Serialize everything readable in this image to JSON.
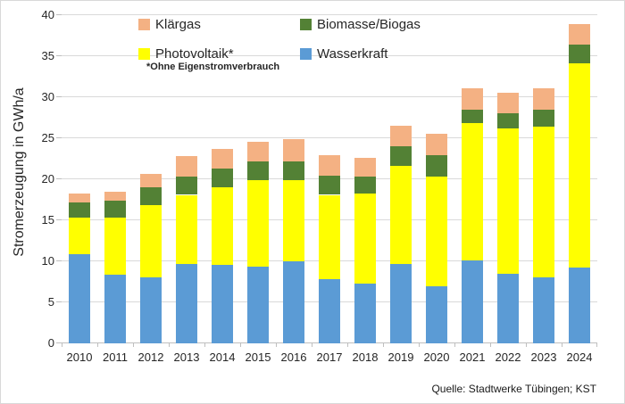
{
  "chart_data": {
    "type": "bar",
    "stacked": true,
    "grid": true,
    "legend_position": "top",
    "y_axis_title": "Stromerzeugung in GWh/a",
    "ylim": [
      0,
      40
    ],
    "y_ticks": [
      0,
      5,
      10,
      15,
      20,
      25,
      30,
      35,
      40
    ],
    "categories": [
      "2010",
      "2011",
      "2012",
      "2013",
      "2014",
      "2015",
      "2016",
      "2017",
      "2018",
      "2019",
      "2020",
      "2021",
      "2022",
      "2023",
      "2024"
    ],
    "series": [
      {
        "name": "Wasserkraft",
        "color": "#5B9BD5",
        "values": [
          10.9,
          8.4,
          8.0,
          9.7,
          9.6,
          9.3,
          10.0,
          7.8,
          7.3,
          9.7,
          7.0,
          10.1,
          8.5,
          8.0,
          9.2
        ]
      },
      {
        "name": "Photovoltaik*",
        "color": "#FFFF00",
        "values": [
          4.4,
          6.9,
          8.9,
          8.4,
          9.4,
          10.6,
          9.9,
          10.3,
          11.0,
          11.9,
          13.3,
          16.7,
          17.7,
          18.4,
          24.9
        ]
      },
      {
        "name": "Biomasse/Biogas",
        "color": "#538135",
        "values": [
          1.9,
          2.1,
          2.1,
          2.2,
          2.3,
          2.3,
          2.3,
          2.3,
          2.0,
          2.4,
          2.6,
          1.7,
          1.8,
          2.1,
          2.3
        ]
      },
      {
        "name": "Klärgas",
        "color": "#F4B183",
        "values": [
          1.1,
          1.1,
          1.6,
          2.5,
          2.4,
          2.4,
          2.7,
          2.5,
          2.3,
          2.5,
          2.6,
          2.6,
          2.5,
          2.6,
          2.5
        ]
      }
    ]
  },
  "legend": {
    "items": [
      {
        "label": "Klärgas",
        "color": "#F4B183"
      },
      {
        "label": "Biomasse/Biogas",
        "color": "#538135"
      },
      {
        "label": "Photovoltaik*",
        "color": "#FFFF00"
      },
      {
        "label": "Wasserkraft",
        "color": "#5B9BD5"
      }
    ],
    "footnote": "*Ohne Eigenstromverbrauch"
  },
  "axis": {
    "y_title": "Stromerzeugung in GWh/a"
  },
  "source": "Quelle: Stadtwerke Tübingen; KST",
  "colors": {
    "gridline": "#D9D9D9",
    "axis_line": "#BFBFBF",
    "text": "#262626",
    "background": "#FFFFFF"
  }
}
